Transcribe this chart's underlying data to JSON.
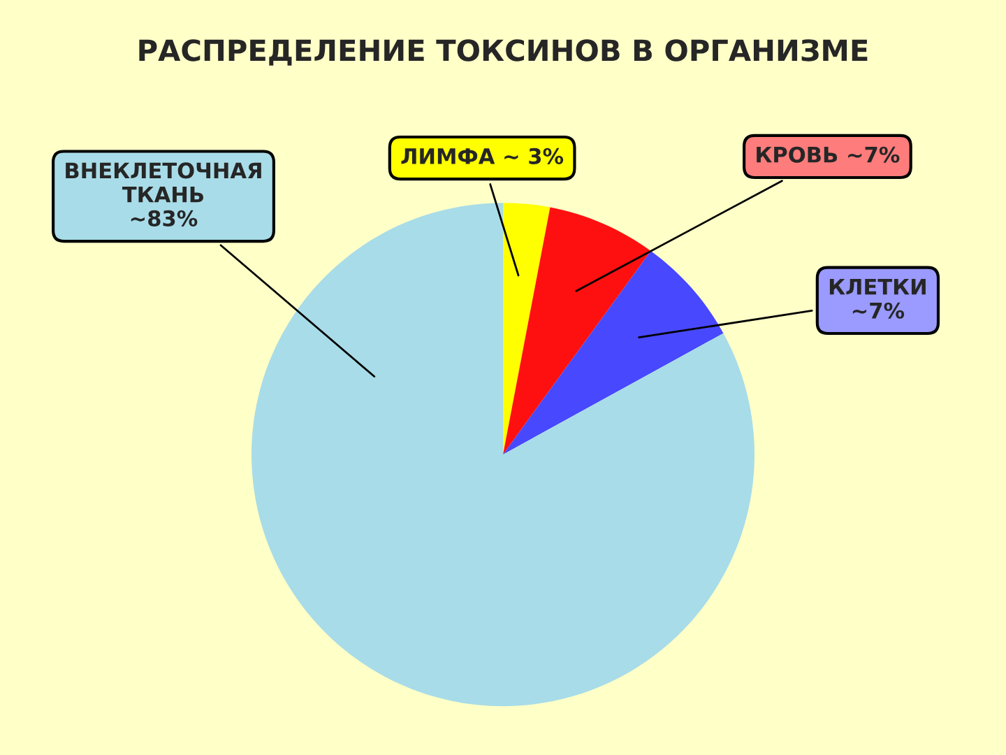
{
  "chart_data": {
    "type": "pie",
    "title": "РАСПРЕДЕЛЕНИЕ ТОКСИНОВ В ОРГАНИЗМЕ",
    "categories": [
      "ЛИМФА ~ 3%",
      "КРОВЬ ~7%",
      "КЛЕТКИ\n~7%",
      "ВНЕКЛЕТОЧНАЯ\nТКАНЬ\n~83%"
    ],
    "values": [
      3,
      7,
      7,
      83
    ],
    "colors": [
      "#ffff00",
      "#ff1010",
      "#4848ff",
      "#a8dce8"
    ],
    "legend": false
  }
}
